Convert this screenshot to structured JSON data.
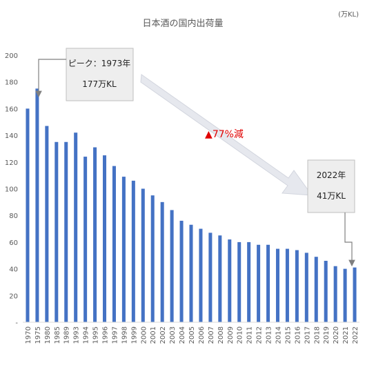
{
  "chart_data": {
    "type": "bar",
    "title": "日本酒の国内出荷量",
    "unit": "(万KL)",
    "ylim": [
      0,
      200
    ],
    "yticks": [
      "-",
      "20",
      "40",
      "60",
      "80",
      "100",
      "120",
      "140",
      "160",
      "180",
      "200"
    ],
    "grid": false,
    "categories": [
      "1970",
      "1975",
      "1980",
      "1985",
      "1989",
      "1993",
      "1994",
      "1995",
      "1996",
      "1997",
      "1998",
      "1999",
      "2000",
      "2001",
      "2002",
      "2003",
      "2004",
      "2005",
      "2006",
      "2007",
      "2008",
      "2009",
      "2010",
      "2011",
      "2012",
      "2013",
      "2014",
      "2015",
      "2016",
      "2017",
      "2018",
      "2019",
      "2020",
      "2021",
      "2022"
    ],
    "values": [
      160,
      175,
      147,
      135,
      135,
      142,
      124,
      131,
      125,
      117,
      109,
      106,
      100,
      95,
      90,
      84,
      76,
      73,
      70,
      67,
      65,
      62,
      60,
      60,
      58,
      58,
      55,
      55,
      54,
      52,
      49,
      46,
      42,
      40,
      41
    ],
    "bar_color": "#4472c4",
    "annotations": {
      "peak_line1": "ピーク：1973年",
      "peak_line2": "177万KL",
      "decline": "▲77%減",
      "latest_line1": "2022年",
      "latest_line2": "41万KL"
    }
  }
}
